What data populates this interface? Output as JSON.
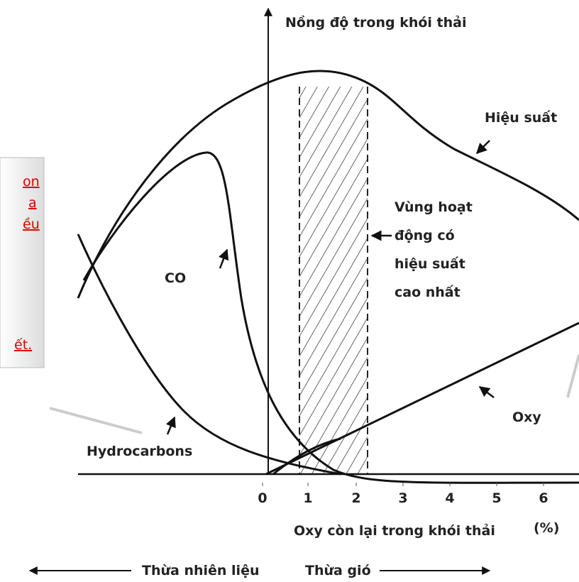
{
  "title": "Nồng độ trong khói thải",
  "curves": {
    "efficiency": "Hiệu suất",
    "co": "CO",
    "oxygen": "Oxy",
    "hydrocarbons": "Hydrocarbons"
  },
  "zone": {
    "lines": [
      "Vùng hoạt",
      "động có",
      "hiệu suất",
      "cao nhất"
    ]
  },
  "x_axis": {
    "ticks": [
      "0",
      "1",
      "2",
      "3",
      "4",
      "5",
      "6"
    ],
    "label": "Oxy còn lại trong khói thải",
    "unit": "(%)"
  },
  "bottom": {
    "left": "Thừa nhiên liệu",
    "right": "Thừa gió"
  },
  "side_box": {
    "fragments": [
      "on",
      "a",
      "ều",
      "ết."
    ]
  }
}
